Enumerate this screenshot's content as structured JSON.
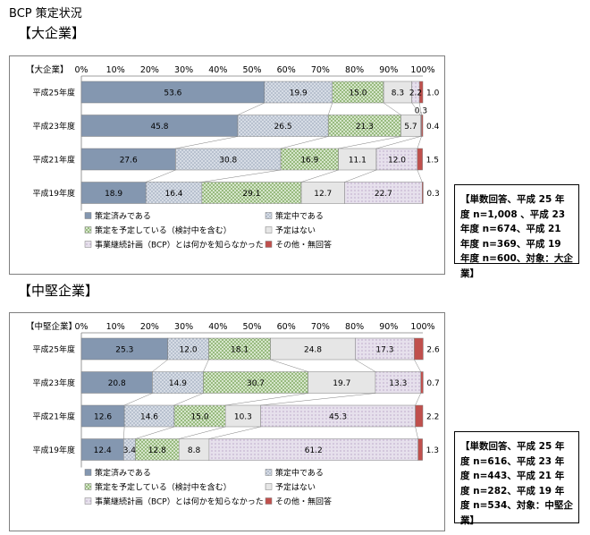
{
  "page_title": "BCP 策定状況",
  "colors": {
    "策定済みである": "#8497b0",
    "策定中である": "#d6dce5",
    "策定を予定している（検討中を含む）": "#e2efda",
    "予定はない": "#ffffff",
    "事業継続計画（BCP）とは何かを知らなかった": "#e6e0ec",
    "その他・無回答": "#c0504d"
  },
  "chart_data": [
    {
      "type": "bar",
      "orientation": "horizontal",
      "stacked": "percent",
      "section_title": "【大企業】",
      "title": "【大企業】",
      "note": "【単数回答、平成 25 年度 n=1,008 、平成 23 年度 n=674、平成 21 年度 n=369、平成 19 年度 n=600、対象：大企業】",
      "xlim": [
        0,
        100
      ],
      "xticks": [
        "0%",
        "10%",
        "20%",
        "30%",
        "40%",
        "50%",
        "60%",
        "70%",
        "80%",
        "90%",
        "100%"
      ],
      "categories": [
        "平成25年度",
        "平成23年度",
        "平成21年度",
        "平成19年度"
      ],
      "series": [
        {
          "name": "策定済みである",
          "values": [
            53.6,
            45.8,
            27.6,
            18.9
          ]
        },
        {
          "name": "策定中である",
          "values": [
            19.9,
            26.5,
            30.8,
            16.4
          ]
        },
        {
          "name": "策定を予定している（検討中を含む）",
          "values": [
            15.0,
            21.3,
            16.9,
            29.1
          ]
        },
        {
          "name": "予定はない",
          "values": [
            8.3,
            5.7,
            11.1,
            12.7
          ]
        },
        {
          "name": "事業継続計画（BCP）とは何かを知らなかった",
          "values": [
            2.2,
            0.3,
            12.0,
            22.7
          ]
        },
        {
          "name": "その他・無回答",
          "values": [
            1.0,
            0.4,
            1.5,
            0.3
          ]
        }
      ],
      "data_labels": [
        [
          "53.6",
          "19.9",
          "15.0",
          "8.3",
          "2.2",
          "1.0"
        ],
        [
          "45.8",
          "26.5",
          "21.3",
          "5.7",
          "0.3",
          "0.4"
        ],
        [
          "27.6",
          "30.8",
          "16.9",
          "11.1",
          "12.0",
          "1.5"
        ],
        [
          "18.9",
          "16.4",
          "29.1",
          "12.7",
          "22.7",
          "0.3"
        ]
      ],
      "grid": false,
      "legend": "bottom"
    },
    {
      "type": "bar",
      "orientation": "horizontal",
      "stacked": "percent",
      "section_title": "【中堅企業】",
      "title": "【中堅企業】",
      "note": "【単数回答、平成 25 年度 n=616、平成 23 年度 n=443、平成 21 年度 n=282、平成 19 年度 n=534、対象：中堅企業】",
      "xlim": [
        0,
        100
      ],
      "xticks": [
        "0%",
        "10%",
        "20%",
        "30%",
        "40%",
        "50%",
        "60%",
        "70%",
        "80%",
        "90%",
        "100%"
      ],
      "categories": [
        "平成25年度",
        "平成23年度",
        "平成21年度",
        "平成19年度"
      ],
      "series": [
        {
          "name": "策定済みである",
          "values": [
            25.3,
            20.8,
            12.6,
            12.4
          ]
        },
        {
          "name": "策定中である",
          "values": [
            12.0,
            14.9,
            14.6,
            3.4
          ]
        },
        {
          "name": "策定を予定している（検討中を含む）",
          "values": [
            18.1,
            30.7,
            15.0,
            12.8
          ]
        },
        {
          "name": "予定はない",
          "values": [
            24.8,
            19.7,
            10.3,
            8.8
          ]
        },
        {
          "name": "事業継続計画（BCP）とは何かを知らなかった",
          "values": [
            17.3,
            13.3,
            45.3,
            61.2
          ]
        },
        {
          "name": "その他・無回答",
          "values": [
            2.6,
            0.7,
            2.2,
            1.3
          ]
        }
      ],
      "data_labels": [
        [
          "25.3",
          "12.0",
          "18.1",
          "24.8",
          "17.3",
          "2.6"
        ],
        [
          "20.8",
          "14.9",
          "30.7",
          "19.7",
          "13.3",
          "0.7"
        ],
        [
          "12.6",
          "14.6",
          "15.0",
          "10.3",
          "45.3",
          "2.2"
        ],
        [
          "12.4",
          "3.4",
          "12.8",
          "8.8",
          "61.2",
          "1.3"
        ]
      ],
      "grid": false,
      "legend": "bottom"
    }
  ]
}
